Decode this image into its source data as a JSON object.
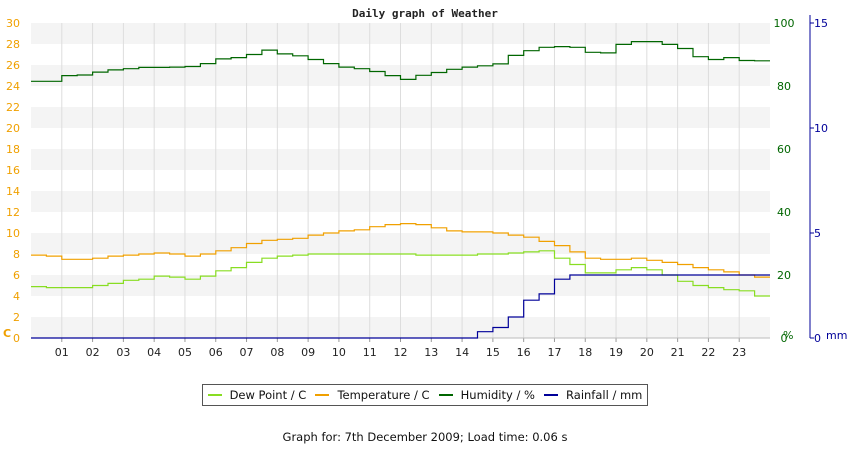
{
  "chart_data": {
    "type": "line",
    "title": "Daily graph of Weather",
    "x": [
      "00:00",
      "00:30",
      "01:00",
      "01:30",
      "02:00",
      "02:30",
      "03:00",
      "03:30",
      "04:00",
      "04:30",
      "05:00",
      "05:30",
      "06:00",
      "06:30",
      "07:00",
      "07:30",
      "08:00",
      "08:30",
      "09:00",
      "09:30",
      "10:00",
      "10:30",
      "11:00",
      "11:30",
      "12:00",
      "12:30",
      "13:00",
      "13:30",
      "14:00",
      "14:30",
      "15:00",
      "15:30",
      "16:00",
      "16:30",
      "17:00",
      "17:30",
      "18:00",
      "18:30",
      "19:00",
      "19:30",
      "20:00",
      "20:30",
      "21:00",
      "21:30",
      "22:00",
      "22:30",
      "23:00",
      "23:30"
    ],
    "x_tick_labels": [
      "01",
      "02",
      "03",
      "04",
      "05",
      "06",
      "07",
      "08",
      "09",
      "10",
      "11",
      "12",
      "13",
      "14",
      "15",
      "16",
      "17",
      "18",
      "19",
      "20",
      "21",
      "22",
      "23"
    ],
    "y_left": {
      "unit_label": "C",
      "range": [
        0,
        30
      ],
      "ticks": [
        "0",
        "2",
        "4",
        "6",
        "8",
        "10",
        "12",
        "14",
        "16",
        "18",
        "20",
        "22",
        "24",
        "26",
        "28",
        "30"
      ],
      "color": "#f0a000"
    },
    "y_humidity": {
      "unit_label": "%",
      "range": [
        0,
        100
      ],
      "ticks": [
        "0",
        "20",
        "40",
        "60",
        "80",
        "100"
      ],
      "color": "#006600"
    },
    "y_rainfall": {
      "unit_label": "mm",
      "range": [
        0,
        15
      ],
      "ticks": [
        "0",
        "5",
        "10",
        "15"
      ],
      "color": "#000099"
    },
    "grid": true,
    "legend_position": "bottom",
    "series": [
      {
        "name": "Dew Point / C",
        "axis": "C",
        "color": "#88dd22",
        "values": [
          4.9,
          4.8,
          4.8,
          4.8,
          5.0,
          5.2,
          5.5,
          5.6,
          5.9,
          5.8,
          5.6,
          5.9,
          6.4,
          6.7,
          7.2,
          7.6,
          7.8,
          7.9,
          8.0,
          8.0,
          8.0,
          8.0,
          8.0,
          8.0,
          8.0,
          7.9,
          7.9,
          7.9,
          7.9,
          8.0,
          8.0,
          8.1,
          8.2,
          8.3,
          7.6,
          7.0,
          6.2,
          6.2,
          6.5,
          6.7,
          6.5,
          6.0,
          5.4,
          5.0,
          4.8,
          4.6,
          4.5,
          4.0
        ]
      },
      {
        "name": "Temperature / C",
        "axis": "C",
        "color": "#f0a000",
        "values": [
          7.9,
          7.8,
          7.5,
          7.5,
          7.6,
          7.8,
          7.9,
          8.0,
          8.1,
          8.0,
          7.8,
          8.0,
          8.3,
          8.6,
          9.0,
          9.3,
          9.4,
          9.5,
          9.8,
          10.0,
          10.2,
          10.3,
          10.6,
          10.8,
          10.9,
          10.8,
          10.5,
          10.2,
          10.1,
          10.1,
          10.0,
          9.8,
          9.6,
          9.2,
          8.8,
          8.2,
          7.6,
          7.5,
          7.5,
          7.6,
          7.4,
          7.2,
          7.0,
          6.7,
          6.5,
          6.3,
          6.0,
          5.8
        ]
      },
      {
        "name": "Humidity / %",
        "axis": "%",
        "color": "#006600",
        "values": [
          81.5,
          81.5,
          83.3,
          83.5,
          84.4,
          85.1,
          85.5,
          85.9,
          85.9,
          86.0,
          86.2,
          87.1,
          88.6,
          89.0,
          90.0,
          91.4,
          90.2,
          89.6,
          88.4,
          87.1,
          86.0,
          85.5,
          84.6,
          83.3,
          82.1,
          83.4,
          84.3,
          85.3,
          86.0,
          86.4,
          87.0,
          89.7,
          91.2,
          92.3,
          92.5,
          92.3,
          90.7,
          90.5,
          93.2,
          94.1,
          94.1,
          93.2,
          91.9,
          89.3,
          88.4,
          89.0,
          88.1,
          88.0
        ]
      },
      {
        "name": "Rainfall / mm",
        "axis": "mm",
        "color": "#000099",
        "values": [
          0,
          0,
          0,
          0,
          0,
          0,
          0,
          0,
          0,
          0,
          0,
          0,
          0,
          0,
          0,
          0,
          0,
          0,
          0,
          0,
          0,
          0,
          0,
          0,
          0,
          0,
          0,
          0,
          0,
          0.3,
          0.5,
          1.0,
          1.8,
          2.1,
          2.8,
          3.0,
          3.0,
          3.0,
          3.0,
          3.0,
          3.0,
          3.0,
          3.0,
          3.0,
          3.0,
          3.0,
          3.0,
          3.0
        ]
      }
    ]
  },
  "footer": "Graph for: 7th December 2009; Load time: 0.06 s"
}
